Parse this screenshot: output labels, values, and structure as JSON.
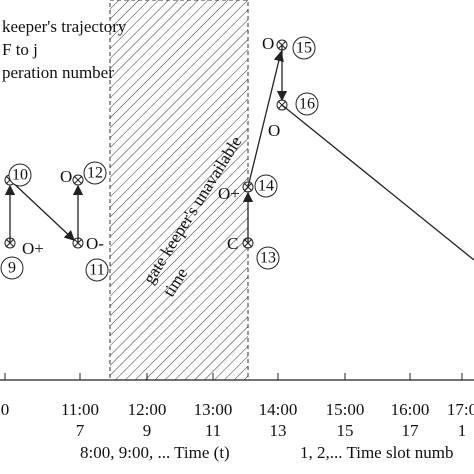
{
  "legend": [
    "keeper's trajectory",
    "F to j",
    "peration number"
  ],
  "hatch_label": [
    "gate keeper's unavailable",
    "time"
  ],
  "nodes": [
    {
      "id": "9",
      "label": "O+"
    },
    {
      "id": "10",
      "label": null
    },
    {
      "id": "11",
      "label": "O-"
    },
    {
      "id": "12",
      "label": "O"
    },
    {
      "id": "13",
      "label": "C"
    },
    {
      "id": "14",
      "label": "O+"
    },
    {
      "id": "15",
      "label": "O"
    },
    {
      "id": "16",
      "label": "O"
    }
  ],
  "axis": {
    "times": [
      "0",
      "11:00",
      "12:00",
      "13:00",
      "14:00",
      "15:00",
      "16:00",
      "17:0"
    ],
    "slots": [
      "7",
      "9",
      "11",
      "13",
      "15",
      "17",
      "1"
    ],
    "time_caption": "8:00, 9:00, ...  Time (t)",
    "slot_caption": "1, 2,... Time slot numb"
  }
}
